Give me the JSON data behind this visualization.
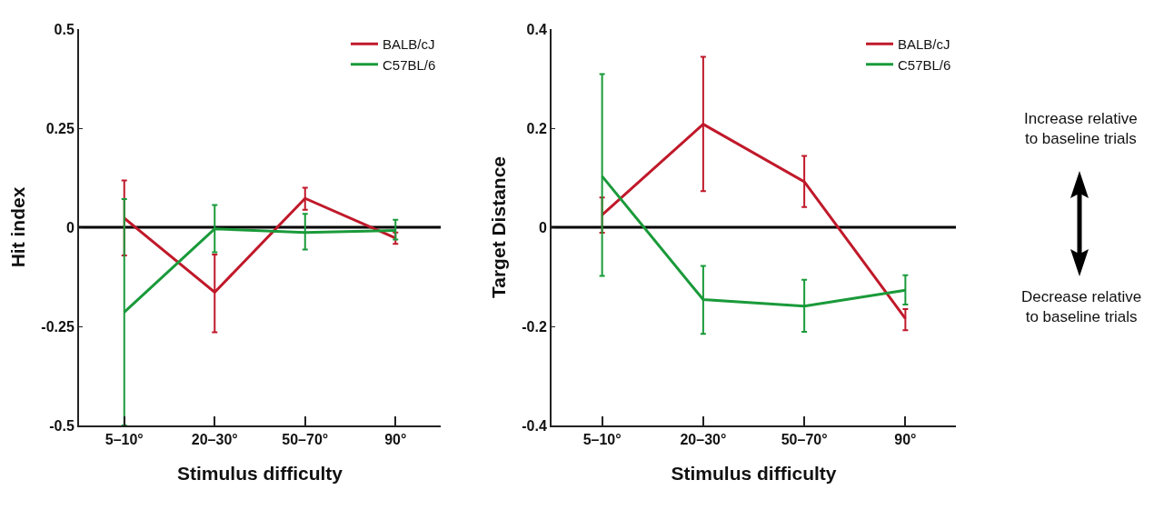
{
  "chart_data": [
    {
      "type": "line",
      "categories": [
        "5–10°",
        "20–30°",
        "50–70°",
        "90°"
      ],
      "xlabel": "Stimulus difficulty",
      "ylabel": "Hit index",
      "ylim": [
        -0.5,
        0.5
      ],
      "yticks": [
        -0.5,
        -0.25,
        0,
        0.25,
        0.5
      ],
      "grid": false,
      "legend": "top right",
      "marker": "none",
      "line_style": "solid",
      "ref_lines": [
        {
          "axis": "y",
          "value": 0,
          "color": "#000000"
        }
      ],
      "series": [
        {
          "name": "BALB/cJ",
          "color": "#c0192a",
          "values": [
            0.023,
            -0.164,
            0.073,
            -0.027
          ],
          "errors": [
            [
              -0.071,
              0.118
            ],
            [
              -0.265,
              -0.069
            ],
            [
              0.044,
              0.1
            ],
            [
              -0.042,
              -0.013
            ]
          ]
        },
        {
          "name": "C57BL/6",
          "color": "#1a9a3a",
          "values": [
            -0.214,
            -0.004,
            -0.013,
            -0.008
          ],
          "errors": [
            [
              -0.5,
              0.071
            ],
            [
              -0.063,
              0.056
            ],
            [
              -0.056,
              0.034
            ],
            [
              -0.031,
              0.019
            ]
          ]
        }
      ]
    },
    {
      "type": "line",
      "categories": [
        "5–10°",
        "20–30°",
        "50–70°",
        "90°"
      ],
      "xlabel": "Stimulus difficulty",
      "ylabel": "Target Distance",
      "ylim": [
        -0.4,
        0.4
      ],
      "yticks": [
        -0.4,
        -0.2,
        0,
        0.2,
        0.4
      ],
      "grid": false,
      "legend": "top right",
      "marker": "none",
      "line_style": "solid",
      "ref_lines": [
        {
          "axis": "y",
          "value": 0,
          "color": "#000000"
        }
      ],
      "annotations": [
        "Increase relative\nto baseline trials",
        "Decrease relative\nto baseline trials"
      ],
      "series": [
        {
          "name": "BALB/cJ",
          "color": "#c0192a",
          "values": [
            0.025,
            0.208,
            0.092,
            -0.184
          ],
          "errors": [
            [
              -0.011,
              0.06
            ],
            [
              0.073,
              0.344
            ],
            [
              0.041,
              0.144
            ],
            [
              -0.208,
              -0.165
            ]
          ]
        },
        {
          "name": "C57BL/6",
          "color": "#1a9a3a",
          "values": [
            0.103,
            -0.146,
            -0.159,
            -0.127
          ],
          "errors": [
            [
              -0.098,
              0.309
            ],
            [
              -0.215,
              -0.078
            ],
            [
              -0.211,
              -0.106
            ],
            [
              -0.156,
              -0.097
            ]
          ]
        }
      ]
    }
  ]
}
